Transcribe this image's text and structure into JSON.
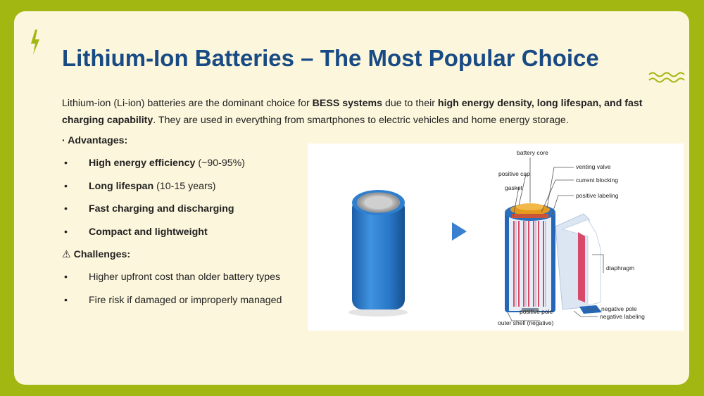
{
  "title": "Lithium-Ion Batteries – The Most Popular Choice",
  "intro": {
    "p1": "Lithium-ion (Li-ion) batteries are the dominant choice for ",
    "b1": "BESS systems",
    "p2": " due to their ",
    "b2": "high energy density, long lifespan, and fast charging capability",
    "p3": ". They are used in everything from smartphones to electric vehicles and home energy storage."
  },
  "advantages": {
    "heading": "· Advantages:",
    "items": [
      {
        "bold": "High energy efficiency",
        "rest": " (~90-95%)"
      },
      {
        "bold": "Long lifespan",
        "rest": " (10-15 years)"
      },
      {
        "bold": "Fast charging and discharging",
        "rest": ""
      },
      {
        "bold": "Compact and lightweight",
        "rest": ""
      }
    ]
  },
  "challenges": {
    "heading": "⚠ Challenges:",
    "items": [
      {
        "text": "Higher upfront cost than older battery types"
      },
      {
        "text": "Fire risk if damaged or improperly managed"
      }
    ]
  },
  "bullet": "•",
  "diagram_labels": {
    "battery_core": "battery core",
    "venting_valve": "venting valve",
    "positive_cap": "positive cap",
    "current_blocking": "current blocking",
    "gasket": "gasket",
    "positive_labeling": "positive labeling",
    "diaphragm": "diaphragm",
    "negative_pole": "negative pole",
    "positive_pole": "positive pole",
    "negative_labeling": "negative labeling",
    "outer_shell": "outer shell (negative)"
  },
  "colors": {
    "frame": "#a2b711",
    "card": "#fcf6dc",
    "title": "#184a84",
    "cell_blue": "#2a78c8",
    "arrow": "#3a7fd0"
  },
  "icons": {
    "corner": "lightning-bolt-icon",
    "decoration": "wave-icon",
    "arrow": "triangle-arrow-icon"
  }
}
